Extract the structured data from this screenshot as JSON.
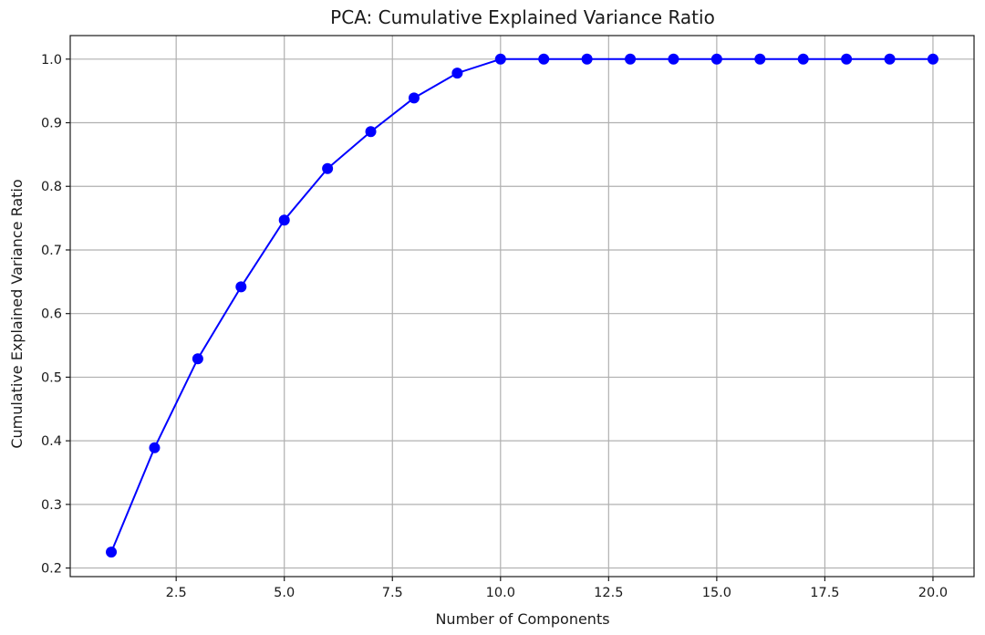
{
  "chart_data": {
    "type": "line",
    "title": "PCA: Cumulative Explained Variance Ratio",
    "xlabel": "Number of Components",
    "ylabel": "Cumulative Explained Variance Ratio",
    "xlim": [
      0.05,
      20.95
    ],
    "ylim": [
      0.1865,
      1.037
    ],
    "grid": true,
    "x_ticks": [
      2.5,
      5.0,
      7.5,
      10.0,
      12.5,
      15.0,
      17.5,
      20.0
    ],
    "x_tick_labels": [
      "2.5",
      "5.0",
      "7.5",
      "10.0",
      "12.5",
      "15.0",
      "17.5",
      "20.0"
    ],
    "y_ticks": [
      0.2,
      0.3,
      0.4,
      0.5,
      0.6,
      0.7,
      0.8,
      0.9,
      1.0
    ],
    "y_tick_labels": [
      "0.2",
      "0.3",
      "0.4",
      "0.5",
      "0.6",
      "0.7",
      "0.8",
      "0.9",
      "1.0"
    ],
    "series": [
      {
        "name": "Cumulative Explained Variance",
        "color": "#0000ff",
        "marker": "circle",
        "x": [
          1,
          2,
          3,
          4,
          5,
          6,
          7,
          8,
          9,
          10,
          11,
          12,
          13,
          14,
          15,
          16,
          17,
          18,
          19,
          20
        ],
        "values": [
          0.225,
          0.389,
          0.529,
          0.642,
          0.747,
          0.828,
          0.886,
          0.939,
          0.978,
          1.0,
          1.0,
          1.0,
          1.0,
          1.0,
          1.0,
          1.0,
          1.0,
          1.0,
          1.0,
          1.0
        ]
      }
    ]
  }
}
